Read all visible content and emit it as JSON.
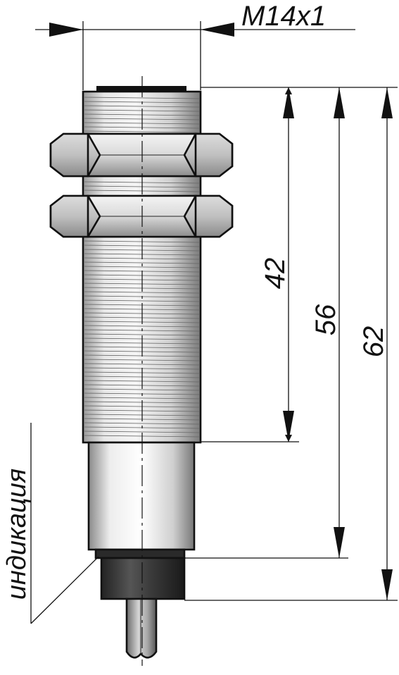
{
  "drawing": {
    "thread_label": "M14x1",
    "dimensions": [
      {
        "id": "dim-42",
        "value": "42"
      },
      {
        "id": "dim-56",
        "value": "56"
      },
      {
        "id": "dim-62",
        "value": "62"
      }
    ],
    "indicator_label": "индикация"
  },
  "colors": {
    "line": "#111111",
    "thread_body": "#d8d8d8",
    "nut": "#cfcfcf",
    "cap_dark": "#3a3a3a"
  }
}
